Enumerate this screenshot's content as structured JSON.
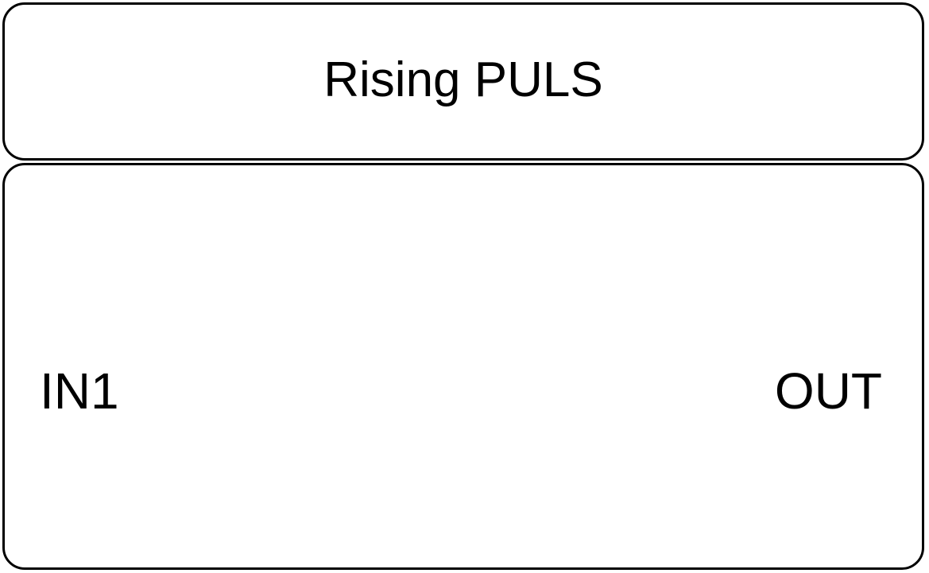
{
  "block": {
    "title": "Rising PULS",
    "inputs": [
      "IN1"
    ],
    "outputs": [
      "OUT"
    ]
  },
  "colors": {
    "stroke": "#000000",
    "background": "#ffffff"
  }
}
